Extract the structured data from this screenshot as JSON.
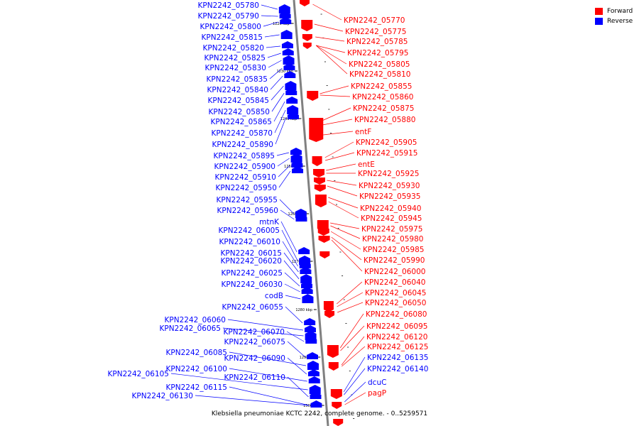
{
  "legend": [
    {
      "label": "Forward",
      "color": "#ff0000"
    },
    {
      "label": "Reverse",
      "color": "#0000ff"
    }
  ],
  "caption": "Klebsiella pneumoniae KCTC 2242, complete genome. - 0..5259571",
  "colors": {
    "forward": "#ff0000",
    "reverse": "#0000ff",
    "backbone": "#808080",
    "leader": "#000000"
  },
  "ticks": [
    "1220 kbp",
    "1230 kbp",
    "1240 kbp",
    "1250 kbp",
    "1260 kbp",
    "1270 kbp",
    "1280 kbp",
    "1290 kbp",
    "1300 kbp"
  ],
  "reverse_genes": [
    "KPN2242_05780",
    "KPN2242_05790",
    "KPN2242_05800",
    "KPN2242_05815",
    "KPN2242_05820",
    "KPN2242_05825",
    "KPN2242_05830",
    "KPN2242_05835",
    "KPN2242_05840",
    "KPN2242_05845",
    "KPN2242_05850",
    "KPN2242_05865",
    "KPN2242_05870",
    "KPN2242_05890",
    "KPN2242_05895",
    "KPN2242_05900",
    "KPN2242_05910",
    "KPN2242_05950",
    "KPN2242_05955",
    "KPN2242_05960",
    "mtnK",
    "KPN2242_06005",
    "KPN2242_06010",
    "KPN2242_06015",
    "KPN2242_06020",
    "KPN2242_06025",
    "KPN2242_06030",
    "codB",
    "KPN2242_06055",
    "KPN2242_06060",
    "KPN2242_06065",
    "KPN2242_06070",
    "KPN2242_06075",
    "KPN2242_06085",
    "KPN2242_06090",
    "KPN2242_06100",
    "KPN2242_06105",
    "KPN2242_06110",
    "KPN2242_06115",
    "KPN2242_06130"
  ],
  "forward_genes": [
    "KPN2242_05770",
    "KPN2242_05775",
    "KPN2242_05785",
    "KPN2242_05795",
    "KPN2242_05805",
    "KPN2242_05810",
    "KPN2242_05855",
    "KPN2242_05860",
    "KPN2242_05875",
    "KPN2242_05880",
    "entF",
    "KPN2242_05905",
    "KPN2242_05915",
    "entE",
    "KPN2242_05925",
    "KPN2242_05930",
    "KPN2242_05935",
    "KPN2242_05940",
    "KPN2242_05945",
    "KPN2242_05975",
    "KPN2242_05980",
    "KPN2242_05985",
    "KPN2242_05990",
    "KPN2242_06000",
    "KPN2242_06040",
    "KPN2242_06045",
    "KPN2242_06050",
    "KPN2242_06080",
    "KPN2242_06095",
    "KPN2242_06120",
    "KPN2242_06125",
    "KPN2242_06135",
    "KPN2242_06140",
    "dcuC",
    "pagP"
  ],
  "blue_labeled_forward": [
    "KPN2242_06135",
    "KPN2242_06140",
    "dcuC"
  ]
}
